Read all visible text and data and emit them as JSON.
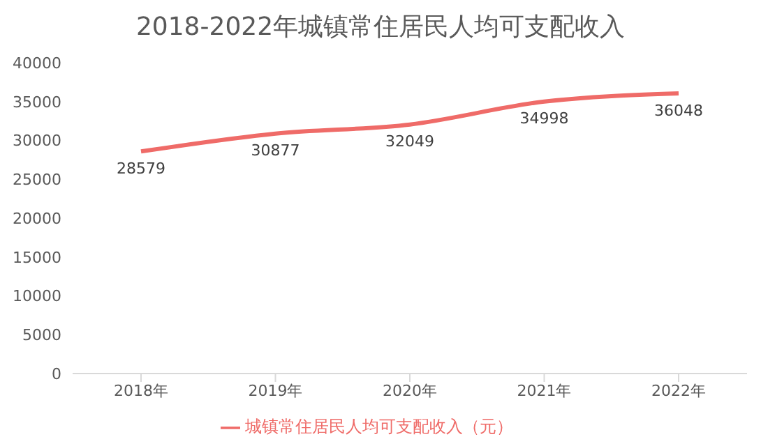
{
  "chart_data": {
    "type": "line",
    "title": "2018-2022年城镇常住居民人均可支配收入",
    "categories": [
      "2018年",
      "2019年",
      "2020年",
      "2021年",
      "2022年"
    ],
    "series": [
      {
        "name": "城镇常住居民人均可支配收入（元）",
        "color": "#ef6b68",
        "values": [
          28579,
          30877,
          32049,
          34998,
          36048
        ]
      }
    ],
    "ylim": [
      0,
      40000
    ],
    "yticks": [
      0,
      5000,
      10000,
      15000,
      20000,
      25000,
      30000,
      35000,
      40000
    ],
    "grid": false,
    "legend": "bottom",
    "data_labels": true,
    "marker": "none",
    "line_style": "solid"
  }
}
